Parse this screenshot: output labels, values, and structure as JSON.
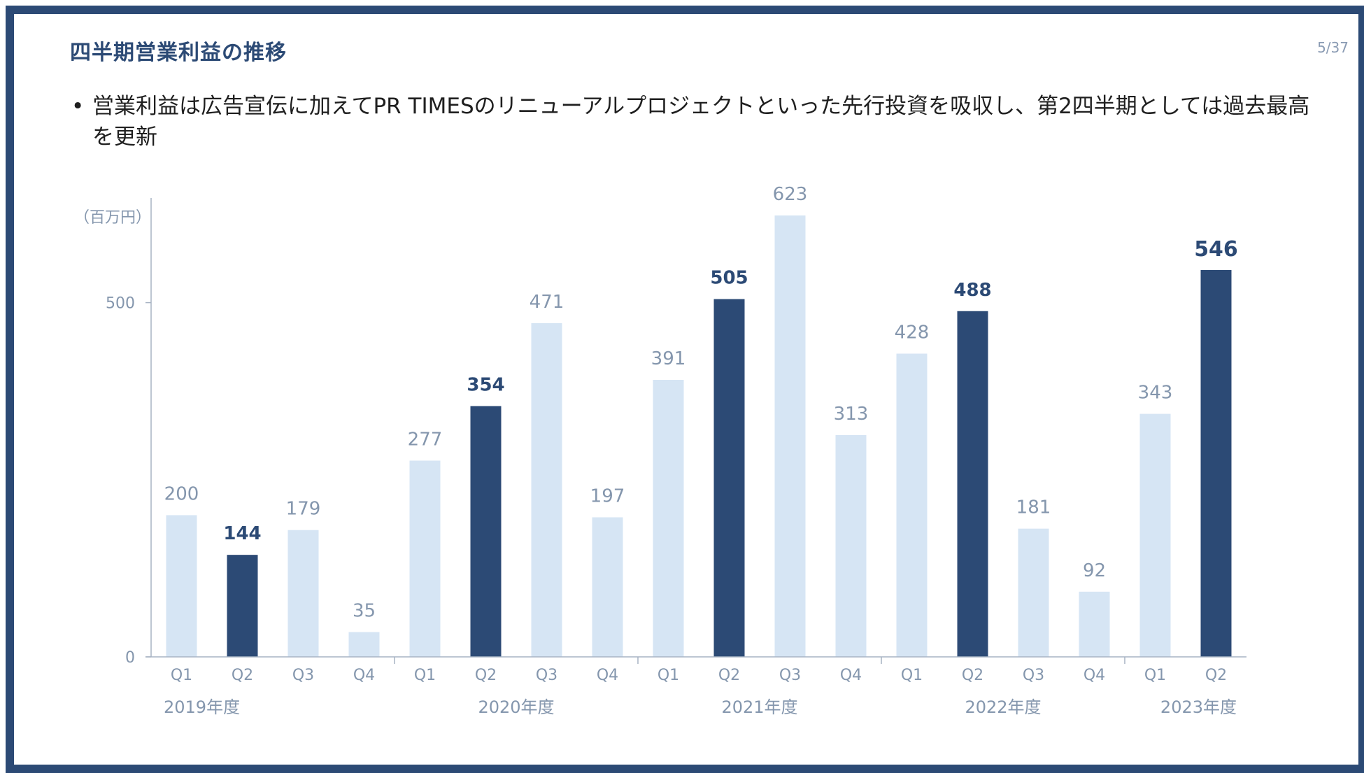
{
  "slide": {
    "title": "四半期営業利益の推移",
    "page_number": "5/37",
    "bullet": "営業利益は広告宣伝に加えてPR TIMESのリニューアルプロジェクトといった先行投資を吸収し、第2四半期としては過去最高を更新"
  },
  "colors": {
    "highlight": "#2c4a75",
    "normal": "#d6e5f4",
    "label_normal": "#8496ad",
    "axis": "#a7b3c3",
    "border": "#2c4a75"
  },
  "chart_data": {
    "type": "bar",
    "ylabel": "（百万円）",
    "ylim": [
      0,
      650
    ],
    "yticks": [
      0,
      500
    ],
    "grid": false,
    "categories": [
      "Q1",
      "Q2",
      "Q3",
      "Q4",
      "Q1",
      "Q2",
      "Q3",
      "Q4",
      "Q1",
      "Q2",
      "Q3",
      "Q4",
      "Q1",
      "Q2",
      "Q3",
      "Q4",
      "Q1",
      "Q2"
    ],
    "values": [
      200,
      144,
      179,
      35,
      277,
      354,
      471,
      197,
      391,
      505,
      623,
      313,
      428,
      488,
      181,
      92,
      343,
      546
    ],
    "highlight": [
      false,
      true,
      false,
      false,
      false,
      true,
      false,
      false,
      false,
      true,
      false,
      false,
      false,
      true,
      false,
      false,
      false,
      true
    ],
    "years": [
      {
        "label": "2019年度",
        "quarters": 4
      },
      {
        "label": "2020年度",
        "quarters": 4
      },
      {
        "label": "2021年度",
        "quarters": 4
      },
      {
        "label": "2022年度",
        "quarters": 4
      },
      {
        "label": "2023年度",
        "quarters": 2
      }
    ]
  }
}
